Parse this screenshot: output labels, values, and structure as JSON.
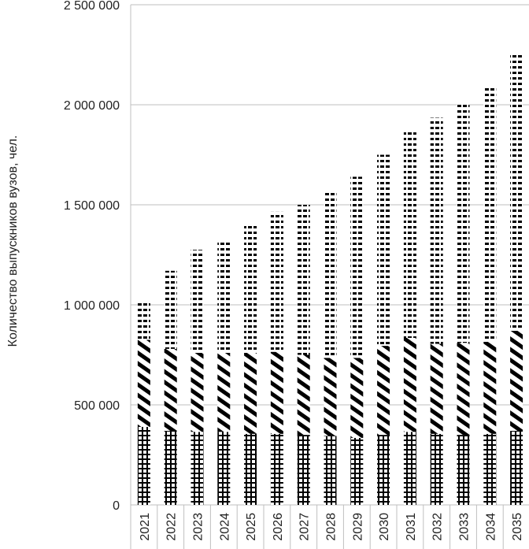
{
  "chart_data": {
    "type": "bar",
    "stacked": true,
    "categories": [
      "2021",
      "2022",
      "2023",
      "2024",
      "2025",
      "2026",
      "2027",
      "2028",
      "2029",
      "2030",
      "2031",
      "2032",
      "2033",
      "2034",
      "2035"
    ],
    "series": [
      {
        "pattern": "grid",
        "values": [
          390000,
          370000,
          365000,
          365000,
          355000,
          355000,
          350000,
          345000,
          335000,
          350000,
          365000,
          355000,
          350000,
          355000,
          370000
        ]
      },
      {
        "pattern": "diagonal",
        "values": [
          435000,
          410000,
          395000,
          395000,
          405000,
          410000,
          400000,
          390000,
          400000,
          445000,
          470000,
          450000,
          460000,
          460000,
          500000
        ]
      },
      {
        "pattern": "horizontal-dash",
        "values": [
          185000,
          390000,
          515000,
          560000,
          640000,
          700000,
          750000,
          825000,
          905000,
          955000,
          1040000,
          1130000,
          1205000,
          1275000,
          1380000
        ]
      }
    ],
    "totals": [
      1010000,
      1170000,
      1275000,
      1320000,
      1400000,
      1465000,
      1500000,
      1560000,
      1640000,
      1750000,
      1875000,
      1935000,
      2015000,
      2090000,
      2250000
    ],
    "ylabel": "Количество выпускников вузов, чел.",
    "ylim": [
      0,
      2500000
    ],
    "yticks": [
      0,
      500000,
      1000000,
      1500000,
      2000000,
      2500000
    ],
    "ytick_labels": [
      "0",
      "500 000",
      "1 000 000",
      "1 500 000",
      "2 000 000",
      "2 500 000"
    ],
    "grid": true,
    "colors": {
      "bar": "#000000",
      "grid": "#bfbfbf",
      "background": "#ffffff"
    }
  }
}
